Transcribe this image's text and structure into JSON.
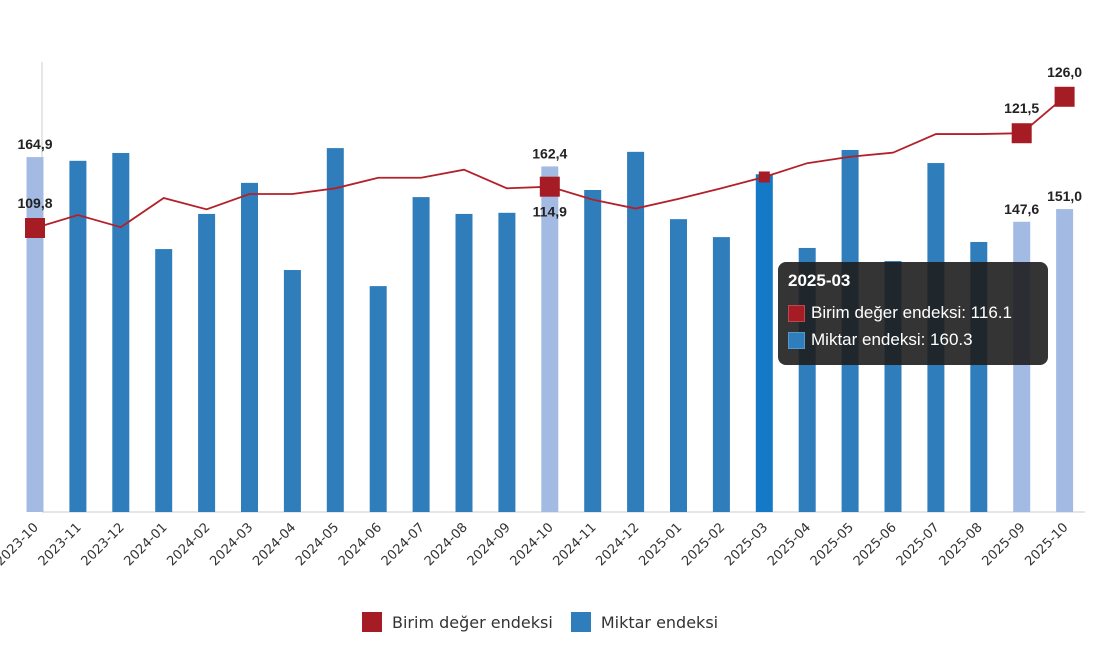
{
  "chart_data": {
    "type": "bar+line",
    "categories": [
      "2023-10",
      "2023-11",
      "2023-12",
      "2024-01",
      "2024-02",
      "2024-03",
      "2024-04",
      "2024-05",
      "2024-06",
      "2024-07",
      "2024-08",
      "2024-09",
      "2024-10",
      "2024-11",
      "2024-12",
      "2025-01",
      "2025-02",
      "2025-03",
      "2025-04",
      "2025-05",
      "2025-06",
      "2025-07",
      "2025-08",
      "2025-09",
      "2025-10"
    ],
    "series": [
      {
        "name": "Miktar endeksi",
        "type": "bar",
        "color": "#2f7ebb",
        "highlight_color": "#a3bbe3",
        "values": [
          164.9,
          163.9,
          166.0,
          140.3,
          149.7,
          158.0,
          134.7,
          167.3,
          130.4,
          154.2,
          149.7,
          150.0,
          162.4,
          156.1,
          166.3,
          148.3,
          143.5,
          160.3,
          140.6,
          166.8,
          137.1,
          163.3,
          142.2,
          147.6,
          151.0
        ],
        "labels": {
          "0": "164,9",
          "12": "162,4",
          "23": "147,6",
          "24": "151,0"
        }
      },
      {
        "name": "Birim değer endeksi",
        "type": "line",
        "color": "#b3202a",
        "marker_color": "#a51c24",
        "values": [
          109.8,
          111.4,
          109.9,
          113.5,
          112.1,
          114.0,
          114.0,
          114.7,
          116.0,
          116.0,
          117.0,
          114.7,
          114.9,
          113.3,
          112.2,
          113.4,
          114.7,
          116.1,
          117.8,
          118.6,
          119.1,
          121.4,
          121.4,
          121.5,
          126.0
        ],
        "labels": {
          "0": "109,8",
          "12": "114,9",
          "23": "121,5",
          "24": "126,0"
        }
      }
    ],
    "bar_axis_range": [
      70,
      190
    ],
    "line_axis_range": [
      90,
      130
    ],
    "grid": false,
    "legend_position": "bottom",
    "hovered_category": "2025-03"
  },
  "legend": [
    {
      "label": "Birim değer endeksi",
      "color": "#a51c24"
    },
    {
      "label": "Miktar endeksi",
      "color": "#2f7ebb"
    }
  ],
  "tooltip": {
    "title": "2025-03",
    "rows": [
      {
        "text": "Birim değer endeksi: 116.1",
        "color": "#a51c24"
      },
      {
        "text": "Miktar endeksi: 160.3",
        "color": "#2f7ebb"
      }
    ]
  }
}
